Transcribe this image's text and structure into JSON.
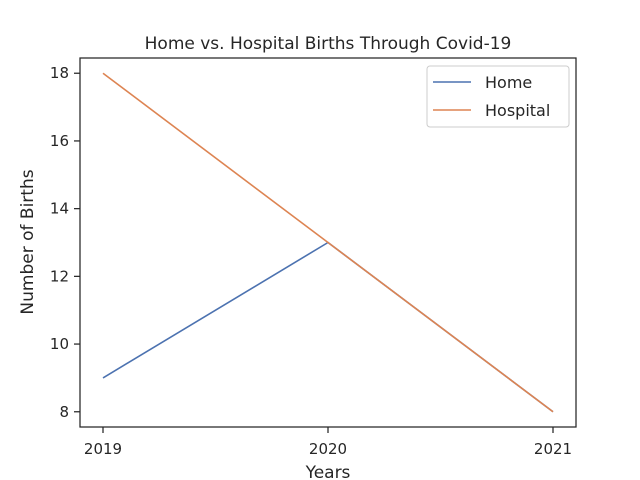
{
  "chart_data": {
    "type": "line",
    "title": "Home vs. Hospital Births Through Covid-19",
    "xlabel": "Years",
    "ylabel": "Number of Births",
    "categories": [
      "2019",
      "2020",
      "2021"
    ],
    "series": [
      {
        "name": "Home",
        "values": [
          9,
          13,
          8
        ],
        "color": "#4c72b0"
      },
      {
        "name": "Hospital",
        "values": [
          18,
          13,
          8
        ],
        "color": "#dd8452"
      }
    ],
    "ylim": [
      7.55,
      18.45
    ],
    "yticks": [
      8,
      10,
      12,
      14,
      16,
      18
    ],
    "grid": false,
    "legend": "upper right"
  }
}
